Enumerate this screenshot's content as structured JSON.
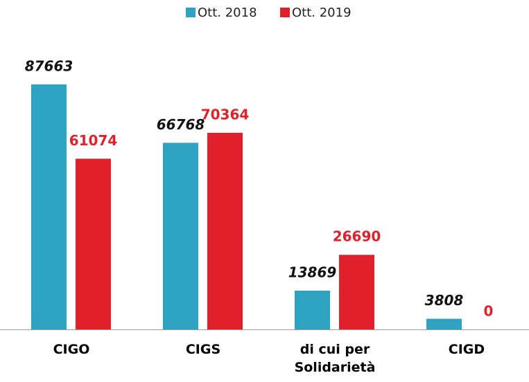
{
  "chart_data": {
    "type": "bar",
    "categories": [
      "CIGO",
      "CIGS",
      "di cui per Solidarietà",
      "CIGD"
    ],
    "series": [
      {
        "name": "Ott. 2018",
        "color": "#2ea3c1",
        "values": [
          87663,
          66768,
          13869,
          3808
        ]
      },
      {
        "name": "Ott. 2019",
        "color": "#e0202a",
        "values": [
          61074,
          70364,
          26690,
          0
        ]
      }
    ],
    "legend": "top"
  }
}
